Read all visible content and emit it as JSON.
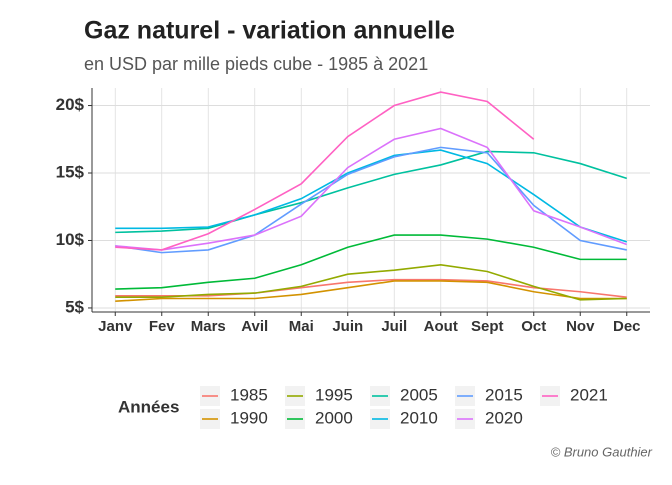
{
  "chart_data": {
    "type": "line",
    "title": "Gaz naturel - variation annuelle",
    "subtitle": "en USD par mille pieds cube - 1985 à 2021",
    "legend_title": "Années",
    "caption": "© Bruno Gauthier",
    "categories": [
      "Janv",
      "Fev",
      "Mars",
      "Avil",
      "Mai",
      "Juin",
      "Juil",
      "Aout",
      "Sept",
      "Oct",
      "Nov",
      "Dec"
    ],
    "ylim": [
      4.7,
      21.3
    ],
    "yticks": [
      {
        "value": 5,
        "label": "5$"
      },
      {
        "value": 10,
        "label": "10$"
      },
      {
        "value": 15,
        "label": "15$"
      },
      {
        "value": 20,
        "label": "20$"
      }
    ],
    "grid": true,
    "series": [
      {
        "name": "1985",
        "color": "#F8766D",
        "values": [
          5.9,
          5.9,
          5.9,
          6.1,
          6.5,
          6.9,
          7.1,
          7.1,
          7.0,
          6.5,
          6.2,
          5.8
        ]
      },
      {
        "name": "1990",
        "color": "#D39200",
        "values": [
          5.5,
          5.7,
          5.7,
          5.7,
          6.0,
          6.5,
          7.0,
          7.0,
          6.9,
          6.2,
          5.7,
          5.7
        ]
      },
      {
        "name": "1995",
        "color": "#93AA00",
        "values": [
          5.8,
          5.8,
          6.0,
          6.1,
          6.6,
          7.5,
          7.8,
          8.2,
          7.7,
          6.6,
          5.6,
          5.7
        ]
      },
      {
        "name": "2000",
        "color": "#00BA38",
        "values": [
          6.4,
          6.5,
          6.9,
          7.2,
          8.2,
          9.5,
          10.4,
          10.4,
          10.1,
          9.5,
          8.6,
          8.6
        ]
      },
      {
        "name": "2005",
        "color": "#00C19F",
        "values": [
          10.6,
          10.7,
          10.9,
          11.9,
          12.8,
          13.9,
          14.9,
          15.6,
          16.6,
          16.5,
          15.7,
          14.6
        ]
      },
      {
        "name": "2010",
        "color": "#00B9E3",
        "values": [
          10.9,
          10.9,
          11.0,
          11.9,
          13.1,
          15.0,
          16.3,
          16.7,
          15.7,
          13.4,
          11.0,
          9.9
        ]
      },
      {
        "name": "2015",
        "color": "#619CFF",
        "values": [
          9.6,
          9.1,
          9.3,
          10.4,
          12.7,
          14.9,
          16.2,
          16.9,
          16.5,
          12.6,
          10.0,
          9.3
        ]
      },
      {
        "name": "2020",
        "color": "#DB72FB",
        "values": [
          9.6,
          9.3,
          9.8,
          10.4,
          11.8,
          15.4,
          17.5,
          18.3,
          16.9,
          12.2,
          11.0,
          9.7
        ]
      },
      {
        "name": "2021",
        "color": "#FF61C3",
        "values": [
          9.5,
          9.3,
          10.5,
          12.3,
          14.2,
          17.7,
          20.0,
          21.0,
          20.3,
          17.5,
          null,
          null
        ]
      }
    ]
  }
}
